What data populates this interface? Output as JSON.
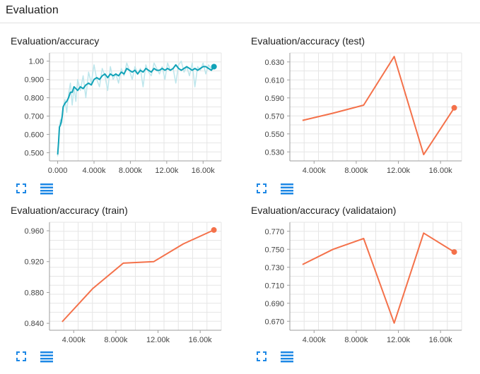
{
  "section": {
    "title": "Evaluation"
  },
  "colors": {
    "smoothed": "#12a3b8",
    "raw": "#bde6ec",
    "line": "#f4714a",
    "grid": "#e6e6e6"
  },
  "icons": {
    "expand": "expand-icon",
    "data": "data-table-icon"
  },
  "chart_data": [
    {
      "type": "line",
      "title": "Evaluation/accuracy",
      "xlim": [
        -900,
        18000
      ],
      "ylim": [
        0.455,
        1.045
      ],
      "xticks": [
        0,
        4000,
        8000,
        12000,
        16000
      ],
      "xtick_labels": [
        "0.000",
        "4.000k",
        "8.000k",
        "12.00k",
        "16.00k"
      ],
      "yticks": [
        0.5,
        0.6,
        0.7,
        0.8,
        0.9,
        1.0
      ],
      "ytick_labels": [
        "0.500",
        "0.600",
        "0.700",
        "0.800",
        "0.900",
        "1.00"
      ],
      "series": [
        {
          "style": "raw",
          "x": [
            0,
            150,
            300,
            450,
            600,
            800,
            1000,
            1200,
            1400,
            1600,
            1800,
            2000,
            2200,
            2500,
            2800,
            3100,
            3400,
            3700,
            4000,
            4300,
            4600,
            4900,
            5200,
            5500,
            5800,
            6100,
            6400,
            6700,
            7000,
            7300,
            7600,
            7900,
            8200,
            8500,
            8800,
            9100,
            9400,
            9700,
            10000,
            10300,
            10600,
            10900,
            11200,
            11500,
            11800,
            12100,
            12400,
            12700,
            13000,
            13300,
            13600,
            13900,
            14200,
            14500,
            14800,
            15100,
            15400,
            15700,
            16000,
            16300,
            16600,
            16900,
            17200
          ],
          "y": [
            0.48,
            0.62,
            0.68,
            0.66,
            0.74,
            0.79,
            0.72,
            0.82,
            0.88,
            0.76,
            0.86,
            0.78,
            0.9,
            0.84,
            0.92,
            0.8,
            0.94,
            0.88,
            0.98,
            0.9,
            0.86,
            0.96,
            0.92,
            0.84,
            0.97,
            0.9,
            0.93,
            0.88,
            0.96,
            0.92,
            0.99,
            0.95,
            0.9,
            0.97,
            0.93,
            0.96,
            0.86,
            0.98,
            0.94,
            0.92,
            0.99,
            0.96,
            0.93,
            0.97,
            0.9,
            0.99,
            0.95,
            0.96,
            0.88,
            0.98,
            1.0,
            0.94,
            0.97,
            0.92,
            0.99,
            0.86,
            0.97,
            0.95,
            0.99,
            0.93,
            0.98,
            0.96,
            0.97
          ]
        },
        {
          "style": "smoothed",
          "x": [
            0,
            100,
            200,
            300,
            400,
            500,
            600,
            800,
            1000,
            1200,
            1400,
            1600,
            1800,
            2000,
            2200,
            2500,
            2800,
            3100,
            3400,
            3700,
            4000,
            4300,
            4600,
            4900,
            5200,
            5500,
            5800,
            6100,
            6400,
            6700,
            7000,
            7300,
            7600,
            7900,
            8200,
            8500,
            8800,
            9100,
            9400,
            9700,
            10000,
            10300,
            10600,
            10900,
            11200,
            11500,
            11800,
            12100,
            12400,
            12700,
            13000,
            13300,
            13600,
            13900,
            14200,
            14500,
            14800,
            15100,
            15400,
            15700,
            16000,
            16300,
            16600,
            16900,
            17200
          ],
          "y": [
            0.49,
            0.56,
            0.64,
            0.65,
            0.67,
            0.7,
            0.75,
            0.77,
            0.78,
            0.8,
            0.83,
            0.83,
            0.86,
            0.85,
            0.84,
            0.86,
            0.85,
            0.87,
            0.88,
            0.87,
            0.9,
            0.91,
            0.9,
            0.92,
            0.93,
            0.91,
            0.93,
            0.92,
            0.93,
            0.92,
            0.94,
            0.93,
            0.96,
            0.95,
            0.94,
            0.95,
            0.93,
            0.95,
            0.94,
            0.96,
            0.95,
            0.94,
            0.96,
            0.95,
            0.95,
            0.96,
            0.95,
            0.96,
            0.95,
            0.96,
            0.98,
            0.96,
            0.95,
            0.96,
            0.97,
            0.96,
            0.95,
            0.96,
            0.95,
            0.96,
            0.97,
            0.97,
            0.96,
            0.95,
            0.97
          ]
        }
      ],
      "last_point": {
        "x": 17200,
        "y": 0.97
      },
      "grid": true
    },
    {
      "type": "line",
      "title": "Evaluation/accuracy (test)",
      "xlim": [
        1700,
        18000
      ],
      "ylim": [
        0.52,
        0.64
      ],
      "xticks": [
        4000,
        8000,
        12000,
        16000
      ],
      "xtick_labels": [
        "4.000k",
        "8.000k",
        "12.00k",
        "16.00k"
      ],
      "yticks": [
        0.53,
        0.55,
        0.57,
        0.59,
        0.61,
        0.63
      ],
      "ytick_labels": [
        "0.530",
        "0.550",
        "0.570",
        "0.590",
        "0.610",
        "0.630"
      ],
      "series": [
        {
          "style": "line",
          "x": [
            2900,
            5800,
            8700,
            11600,
            14400,
            17300
          ],
          "y": [
            0.565,
            0.573,
            0.582,
            0.636,
            0.527,
            0.579
          ]
        }
      ],
      "last_point": {
        "x": 17300,
        "y": 0.579
      },
      "grid": true
    },
    {
      "type": "line",
      "title": "Evaluation/accuracy (train)",
      "xlim": [
        1700,
        18000
      ],
      "ylim": [
        0.831,
        0.971
      ],
      "xticks": [
        4000,
        8000,
        12000,
        16000
      ],
      "xtick_labels": [
        "4.000k",
        "8.000k",
        "12.00k",
        "16.00k"
      ],
      "yticks": [
        0.84,
        0.88,
        0.92,
        0.96
      ],
      "ytick_labels": [
        "0.840",
        "0.880",
        "0.920",
        "0.960"
      ],
      "series": [
        {
          "style": "line",
          "x": [
            2900,
            5800,
            8700,
            11600,
            14400,
            17300
          ],
          "y": [
            0.842,
            0.885,
            0.918,
            0.92,
            0.943,
            0.961
          ]
        }
      ],
      "last_point": {
        "x": 17300,
        "y": 0.961
      },
      "grid": true
    },
    {
      "type": "line",
      "title": "Evaluation/accuracy (validataion)",
      "xlim": [
        1700,
        18000
      ],
      "ylim": [
        0.66,
        0.78
      ],
      "xticks": [
        4000,
        8000,
        12000,
        16000
      ],
      "xtick_labels": [
        "4.000k",
        "8.000k",
        "12.00k",
        "16.00k"
      ],
      "yticks": [
        0.67,
        0.69,
        0.71,
        0.73,
        0.75,
        0.77
      ],
      "ytick_labels": [
        "0.670",
        "0.690",
        "0.710",
        "0.730",
        "0.750",
        "0.770"
      ],
      "series": [
        {
          "style": "line",
          "x": [
            2900,
            5800,
            8700,
            11600,
            14400,
            17300
          ],
          "y": [
            0.733,
            0.75,
            0.762,
            0.668,
            0.768,
            0.747
          ]
        }
      ],
      "last_point": {
        "x": 17300,
        "y": 0.747
      },
      "grid": true
    }
  ]
}
